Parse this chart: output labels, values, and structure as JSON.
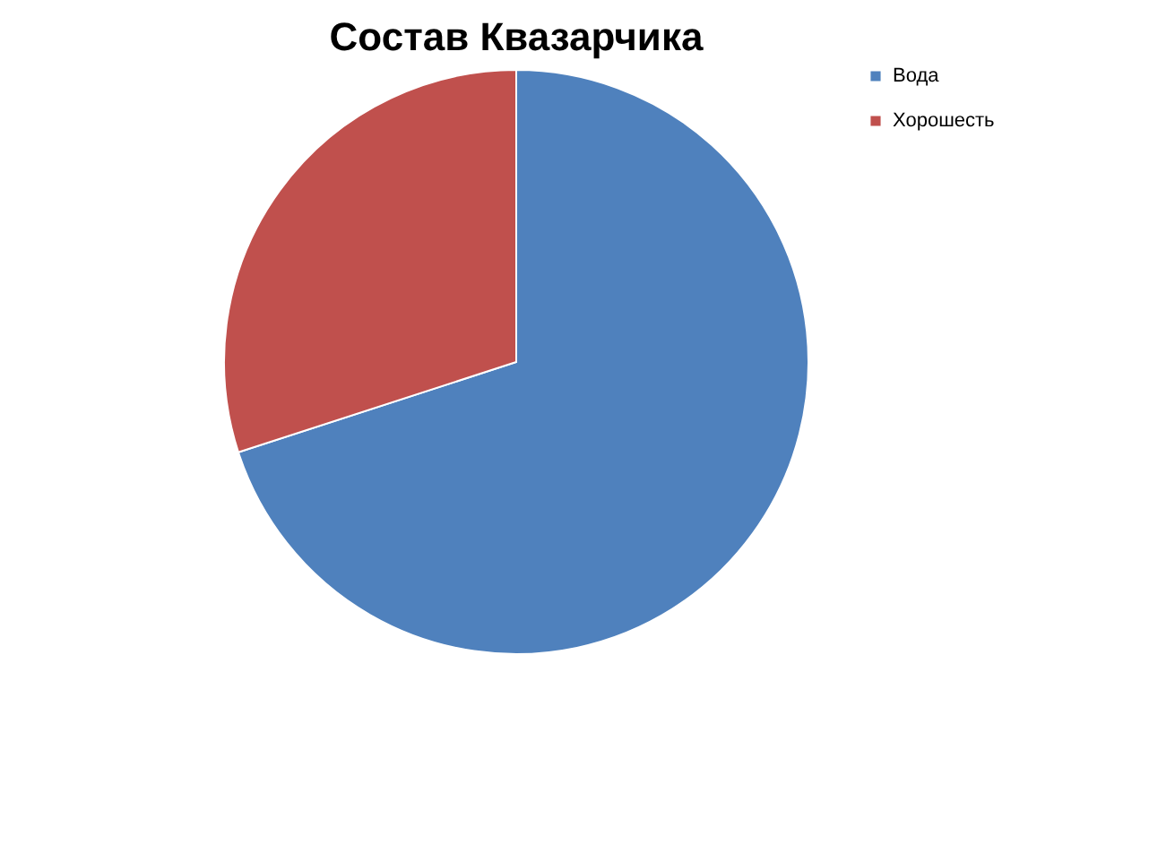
{
  "chart_data": {
    "type": "pie",
    "title": "Состав Квазарчика",
    "categories": [
      "Вода",
      "Хорошесть"
    ],
    "values": [
      70,
      30
    ],
    "colors": [
      "#4f81bd",
      "#c0504d"
    ],
    "legend": "right"
  }
}
